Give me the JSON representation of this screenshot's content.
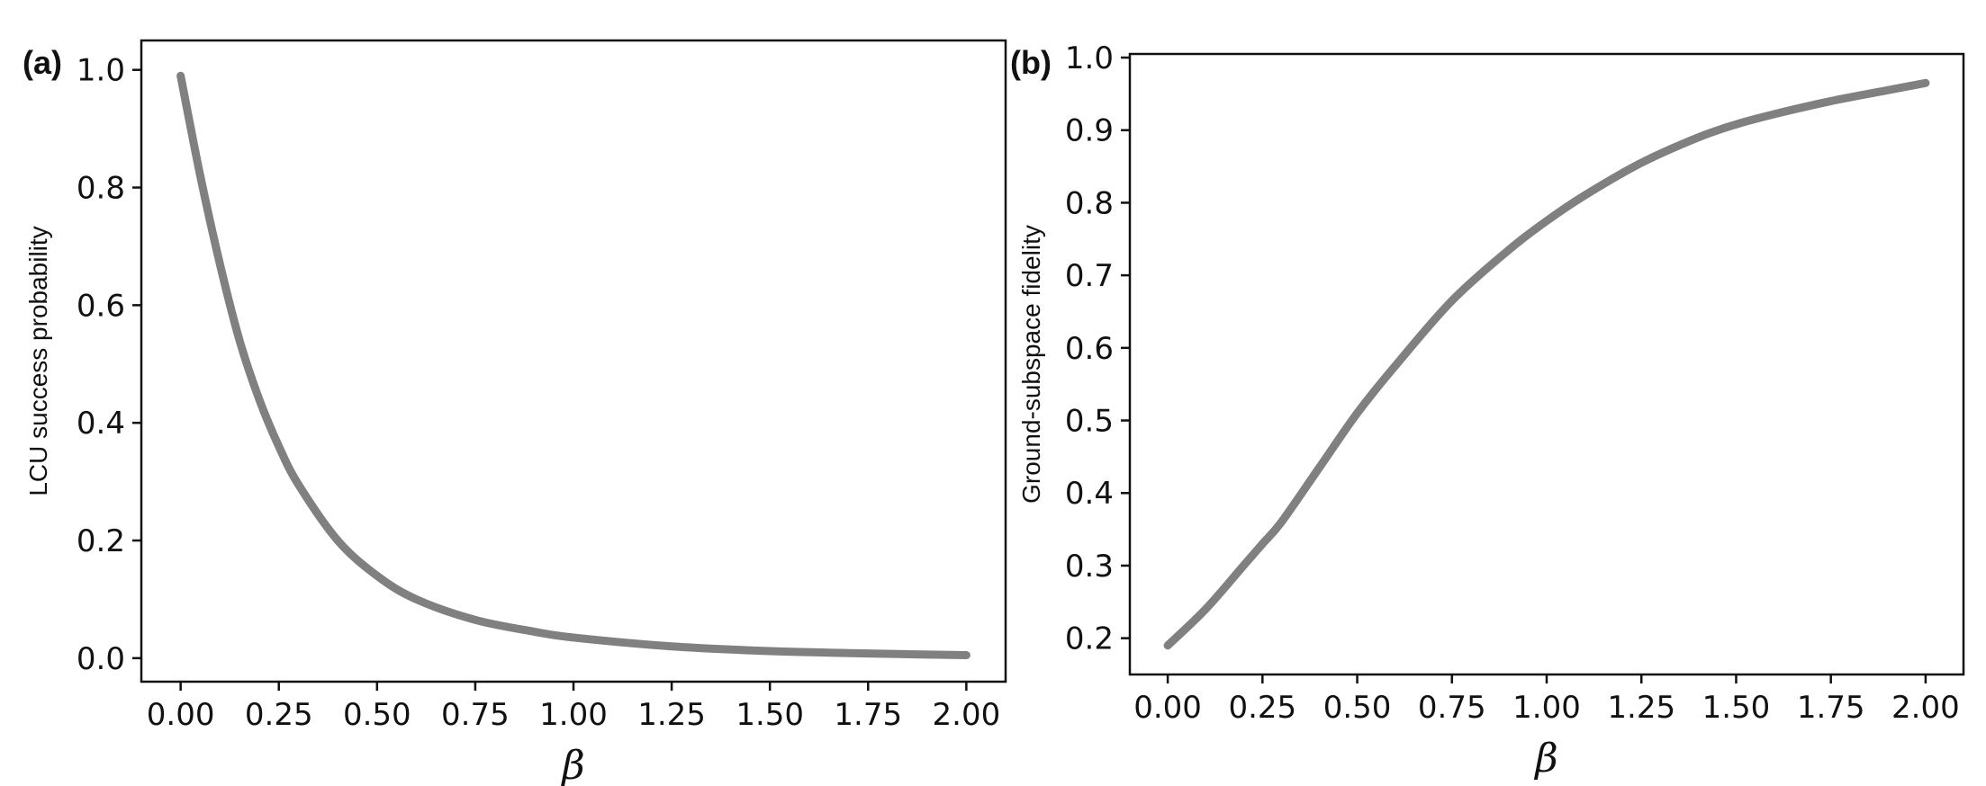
{
  "chart_data": [
    {
      "type": "line",
      "panel_label": "(a)",
      "xlabel": "β",
      "ylabel": "LCU success probability",
      "xlim": [
        -0.1,
        2.1
      ],
      "ylim": [
        -0.04,
        1.05
      ],
      "xticks": [
        "0.00",
        "0.25",
        "0.50",
        "0.75",
        "1.00",
        "1.25",
        "1.50",
        "1.75",
        "2.00"
      ],
      "xtick_values": [
        0,
        0.25,
        0.5,
        0.75,
        1.0,
        1.25,
        1.5,
        1.75,
        2.0
      ],
      "yticks": [
        "0.0",
        "0.2",
        "0.4",
        "0.6",
        "0.8",
        "1.0"
      ],
      "ytick_values": [
        0,
        0.2,
        0.4,
        0.6,
        0.8,
        1.0
      ],
      "grid": false,
      "color": "#808080",
      "series": [
        {
          "x": [
            0.0,
            0.05,
            0.1,
            0.15,
            0.2,
            0.25,
            0.3,
            0.4,
            0.5,
            0.6,
            0.75,
            0.9,
            1.0,
            1.25,
            1.5,
            1.75,
            2.0
          ],
          "y": [
            0.99,
            0.82,
            0.67,
            0.54,
            0.44,
            0.36,
            0.295,
            0.2,
            0.14,
            0.1,
            0.065,
            0.045,
            0.035,
            0.02,
            0.012,
            0.008,
            0.005
          ]
        }
      ]
    },
    {
      "type": "line",
      "panel_label": "(b)",
      "xlabel": "β",
      "ylabel": "Ground-subspace fidelity",
      "xlim": [
        -0.1,
        2.1
      ],
      "ylim": [
        0.15,
        1.005
      ],
      "xticks": [
        "0.00",
        "0.25",
        "0.50",
        "0.75",
        "1.00",
        "1.25",
        "1.50",
        "1.75",
        "2.00"
      ],
      "xtick_values": [
        0,
        0.25,
        0.5,
        0.75,
        1.0,
        1.25,
        1.5,
        1.75,
        2.0
      ],
      "yticks": [
        "0.2",
        "0.3",
        "0.4",
        "0.5",
        "0.6",
        "0.7",
        "0.8",
        "0.9",
        "1.0"
      ],
      "ytick_values": [
        0.2,
        0.3,
        0.4,
        0.5,
        0.6,
        0.7,
        0.8,
        0.9,
        1.0
      ],
      "grid": false,
      "color": "#808080",
      "series": [
        {
          "x": [
            0.0,
            0.1,
            0.2,
            0.25,
            0.3,
            0.4,
            0.5,
            0.6,
            0.75,
            0.9,
            1.0,
            1.1,
            1.25,
            1.4,
            1.5,
            1.6,
            1.75,
            1.9,
            2.0
          ],
          "y": [
            0.19,
            0.24,
            0.3,
            0.33,
            0.36,
            0.435,
            0.51,
            0.575,
            0.665,
            0.735,
            0.775,
            0.81,
            0.855,
            0.89,
            0.908,
            0.922,
            0.94,
            0.955,
            0.965
          ]
        }
      ]
    }
  ]
}
